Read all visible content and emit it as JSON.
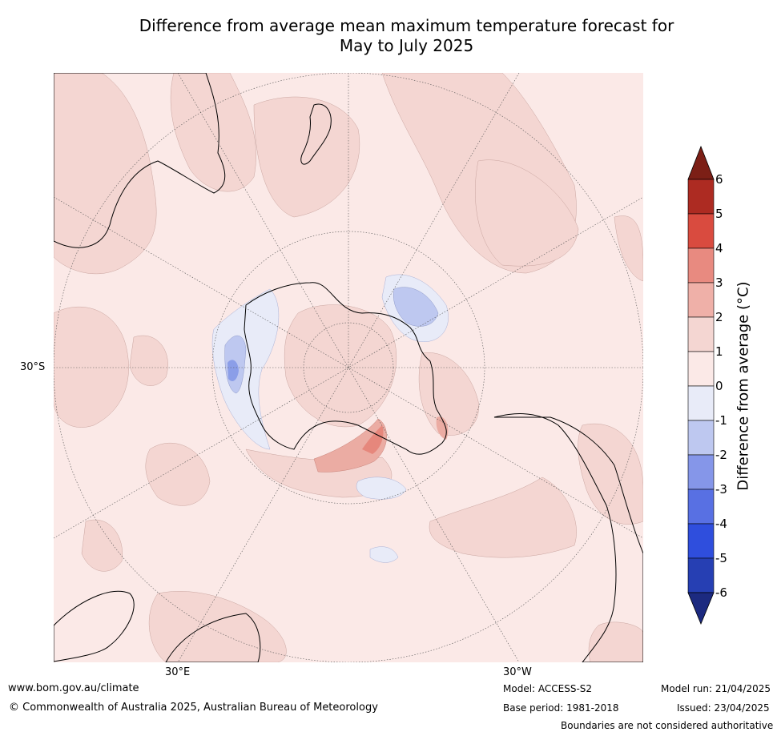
{
  "title": {
    "line1": "Difference from average mean maximum temperature forecast for",
    "line2": "May to July 2025"
  },
  "map": {
    "projection": "south-polar-stereographic",
    "axis_labels": {
      "lat_left": "30°S",
      "lon_bottom_left": "30°E",
      "lon_bottom_right": "30°W"
    },
    "colors": {
      "ocean_bg": "#fbe9e7",
      "pos_1_2": "#f4d6d2",
      "pos_2_3": "#ebaca3",
      "pos_3_4": "#e6877c",
      "neg_0_1": "#e8ebf8",
      "neg_1_2": "#bec8f0",
      "neg_2_3": "#8b9ee8",
      "coast": "#000000"
    }
  },
  "colorbar": {
    "label": "Difference from average (°C)",
    "ticks": [
      "6",
      "5",
      "4",
      "3",
      "2",
      "1",
      "0",
      "-1",
      "-2",
      "-3",
      "-4",
      "-5",
      "-6"
    ],
    "colors": [
      "#7c1f16",
      "#ad2b22",
      "#d94b3f",
      "#e88a80",
      "#efb0a8",
      "#f4d6d2",
      "#fbe9e7",
      "#e8ebf8",
      "#bec8f0",
      "#8596e9",
      "#5870e3",
      "#2f4edd",
      "#263fb3",
      "#1c2a80"
    ]
  },
  "footer": {
    "website": "www.bom.gov.au/climate",
    "copyright": "© Commonwealth of Australia 2025, Australian Bureau of Meteorology",
    "model": "Model: ACCESS-S2",
    "base_period": "Base period: 1981-2018",
    "model_run": "Model run: 21/04/2025",
    "issued": "Issued: 23/04/2025",
    "disclaimer": "Boundaries are not considered authoritative"
  }
}
